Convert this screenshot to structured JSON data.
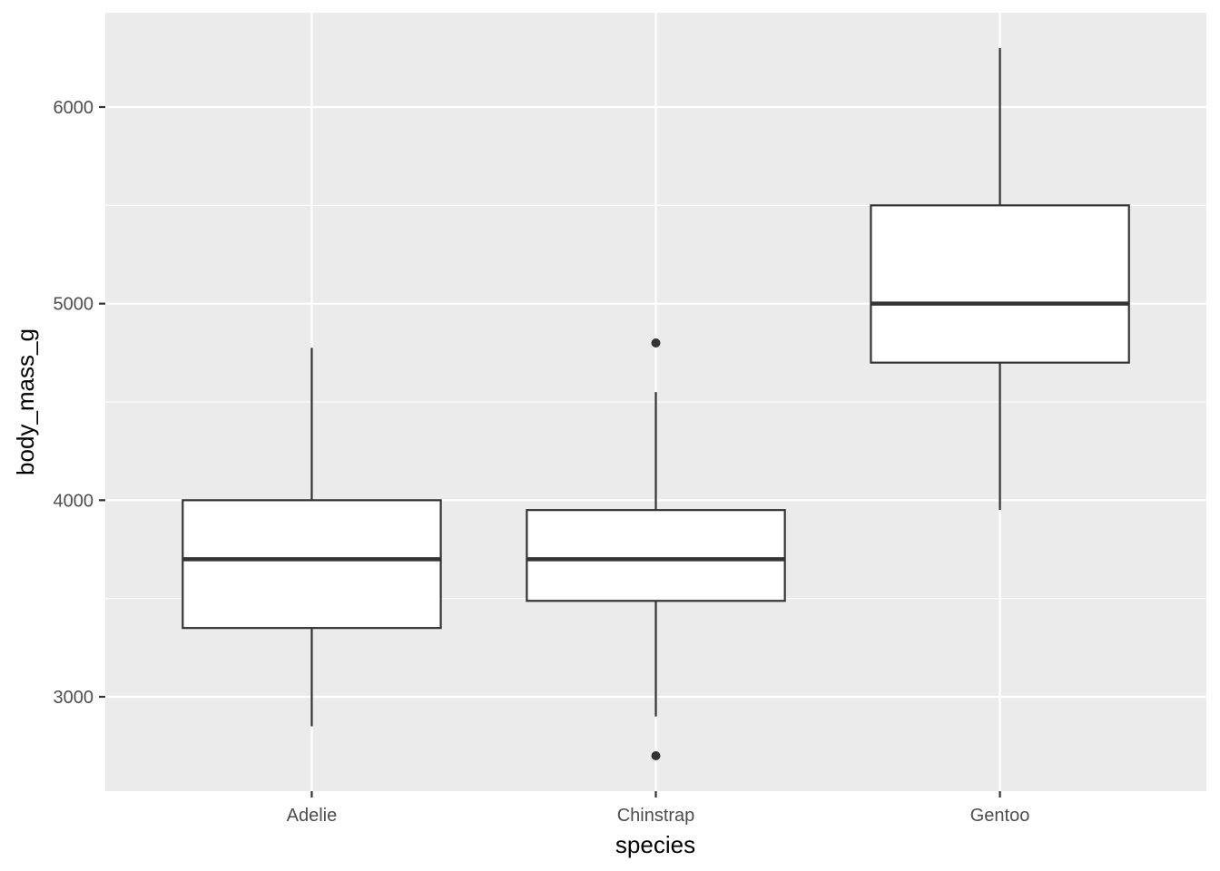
{
  "chart_data": {
    "type": "boxplot",
    "xlabel": "species",
    "ylabel": "body_mass_g",
    "categories": [
      "Adelie",
      "Chinstrap",
      "Gentoo"
    ],
    "boxes": [
      {
        "category": "Adelie",
        "lower_whisker": 2850,
        "q1": 3350,
        "median": 3700,
        "q3": 4000,
        "upper_whisker": 4775,
        "outliers": []
      },
      {
        "category": "Chinstrap",
        "lower_whisker": 2900,
        "q1": 3488,
        "median": 3700,
        "q3": 3950,
        "upper_whisker": 4550,
        "outliers": [
          2700,
          4800
        ]
      },
      {
        "category": "Gentoo",
        "lower_whisker": 3950,
        "q1": 4700,
        "median": 5000,
        "q3": 5500,
        "upper_whisker": 6300,
        "outliers": []
      }
    ],
    "ylim": [
      2520,
      6480
    ],
    "yticks": [
      3000,
      4000,
      5000,
      6000
    ],
    "yticks_minor": [
      2500,
      3500,
      4500,
      5500
    ],
    "grid": true,
    "legend": "none",
    "colors": {
      "panel": "#ebebeb",
      "grid": "#ffffff",
      "box_fill": "#ffffff",
      "box_line": "#333333"
    }
  }
}
